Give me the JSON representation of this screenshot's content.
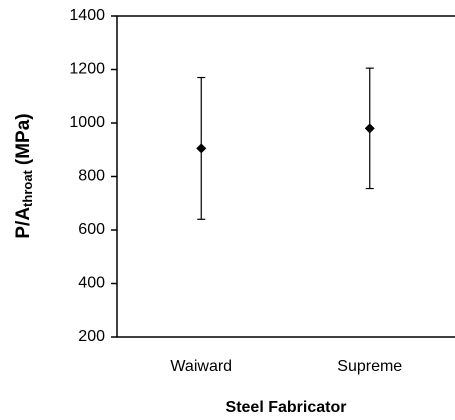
{
  "chart_data": {
    "type": "errorbar",
    "xlabel": "Steel Fabricator",
    "ylabel": {
      "main": "P/A",
      "sub": "throat",
      "unit": "(MPa)"
    },
    "categories": [
      "Waiward",
      "Supreme"
    ],
    "values": [
      905,
      980
    ],
    "errors": [
      265,
      225
    ],
    "color": "#000000",
    "ylim": [
      200,
      1400
    ],
    "yticks": [
      200,
      400,
      600,
      800,
      1000,
      1200,
      1400
    ],
    "grid": false
  }
}
